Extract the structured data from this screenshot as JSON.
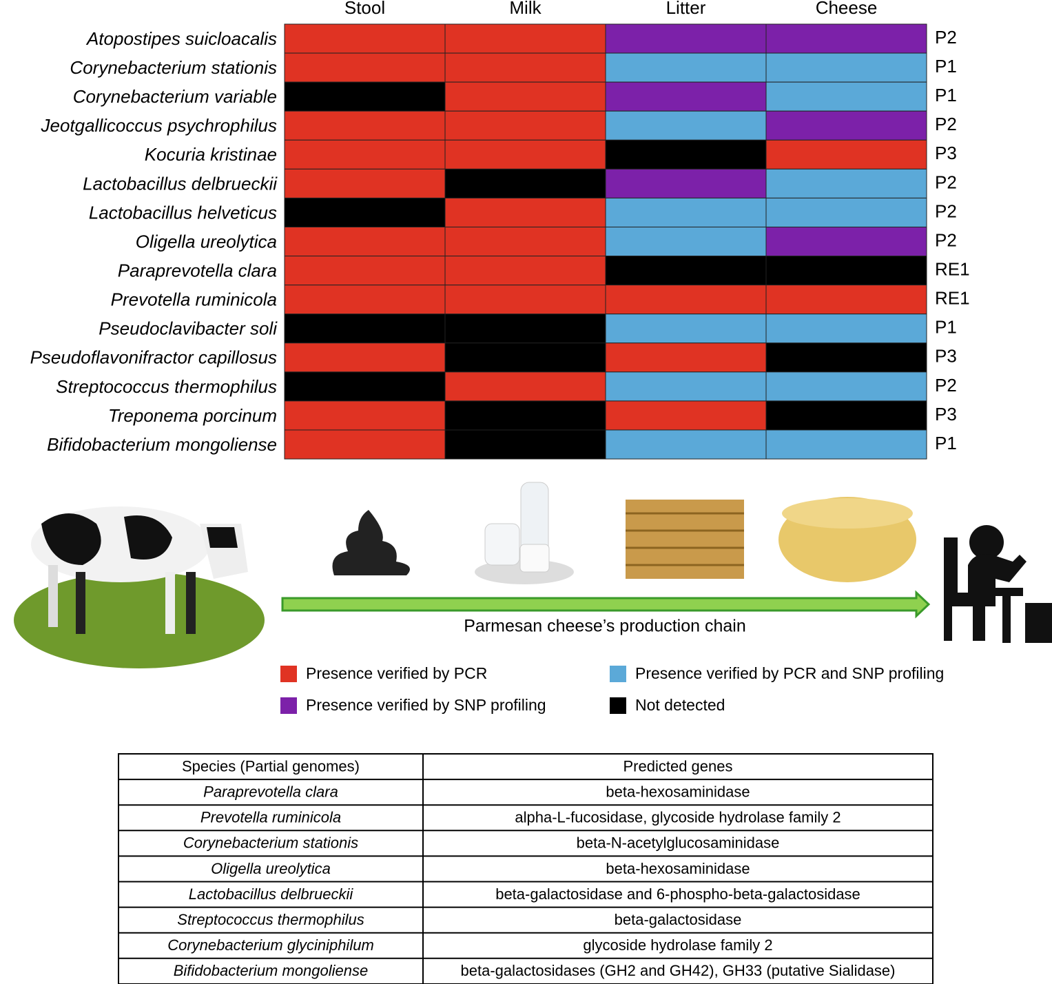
{
  "columns": [
    "Stool",
    "Milk",
    "Litter",
    "Cheese"
  ],
  "rows": [
    {
      "species": "Atopostipes suicloacalis",
      "cells": [
        0,
        0,
        2,
        2
      ],
      "profile": "P2"
    },
    {
      "species": "Corynebacterium stationis",
      "cells": [
        0,
        0,
        1,
        1
      ],
      "profile": "P1"
    },
    {
      "species": "Corynebacterium variable",
      "cells": [
        3,
        0,
        2,
        1
      ],
      "profile": "P1"
    },
    {
      "species": "Jeotgallicoccus psychrophilus",
      "cells": [
        0,
        0,
        1,
        2
      ],
      "profile": "P2"
    },
    {
      "species": "Kocuria kristinae",
      "cells": [
        0,
        0,
        3,
        0
      ],
      "profile": "P3"
    },
    {
      "species": "Lactobacillus delbrueckii",
      "cells": [
        0,
        3,
        2,
        1
      ],
      "profile": "P2"
    },
    {
      "species": "Lactobacillus helveticus",
      "cells": [
        3,
        0,
        1,
        1
      ],
      "profile": "P2"
    },
    {
      "species": "Oligella ureolytica",
      "cells": [
        0,
        0,
        1,
        2
      ],
      "profile": "P2"
    },
    {
      "species": "Paraprevotella clara",
      "cells": [
        0,
        0,
        3,
        3
      ],
      "profile": "RE1"
    },
    {
      "species": "Prevotella ruminicola",
      "cells": [
        0,
        0,
        0,
        0
      ],
      "profile": "RE1"
    },
    {
      "species": "Pseudoclavibacter soli",
      "cells": [
        3,
        3,
        1,
        1
      ],
      "profile": "P1"
    },
    {
      "species": "Pseudoflavonifractor capillosus",
      "cells": [
        0,
        3,
        0,
        3
      ],
      "profile": "P3"
    },
    {
      "species": "Streptococcus thermophilus",
      "cells": [
        3,
        0,
        1,
        1
      ],
      "profile": "P2"
    },
    {
      "species": "Treponema porcinum",
      "cells": [
        0,
        3,
        0,
        3
      ],
      "profile": "P3"
    },
    {
      "species": "Bifidobacterium mongoliense",
      "cells": [
        0,
        3,
        1,
        1
      ],
      "profile": "P1"
    }
  ],
  "caption": "Parmesan cheese’s production chain",
  "legend": [
    {
      "color": "#e03323",
      "label": "Presence verified by PCR"
    },
    {
      "color": "#5ba9d8",
      "label": "Presence verified by PCR and SNP profiling"
    },
    {
      "color": "#7c21a9",
      "label": "Presence verified by SNP profiling"
    },
    {
      "color": "#000000",
      "label": "Not detected"
    }
  ],
  "table": {
    "header": [
      "Species (Partial genomes)",
      "Predicted genes"
    ],
    "rows": [
      [
        "Paraprevotella clara",
        "beta-hexosaminidase"
      ],
      [
        "Prevotella ruminicola",
        "alpha-L-fucosidase, glycoside hydrolase family 2"
      ],
      [
        "Corynebacterium stationis",
        "beta-N-acetylglucosaminidase"
      ],
      [
        "Oligella ureolytica",
        "beta-hexosaminidase"
      ],
      [
        "Lactobacillus delbrueckii",
        "beta-galactosidase and 6-phospho-beta-galactosidase"
      ],
      [
        "Streptococcus thermophilus",
        "beta-galactosidase"
      ],
      [
        "Corynebacterium glyciniphilum",
        "glycoside hydrolase family 2"
      ],
      [
        "Bifidobacterium mongoliense",
        "beta-galactosidases (GH2 and GH42), GH33 (putative Sialidase)"
      ]
    ]
  }
}
